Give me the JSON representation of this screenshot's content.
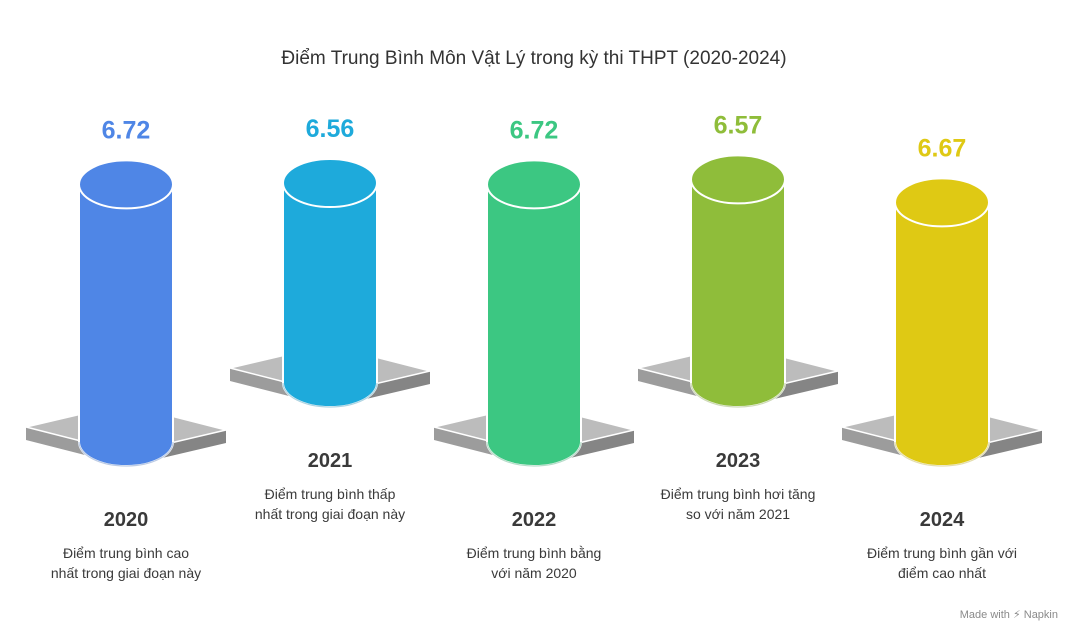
{
  "chart_data": {
    "type": "bar",
    "title": "Điểm Trung Bình Môn Vật Lý trong kỳ thi THPT (2020-2024)",
    "categories": [
      "2020",
      "2021",
      "2022",
      "2023",
      "2024"
    ],
    "values": [
      6.72,
      6.56,
      6.72,
      6.57,
      6.67
    ],
    "value_labels": [
      "6.72",
      "6.56",
      "6.72",
      "6.57",
      "6.67"
    ],
    "descriptions": [
      [
        "Điểm trung bình cao",
        "nhất trong giai đoạn này"
      ],
      [
        "Điểm trung bình thấp",
        "nhất trong giai đoạn này"
      ],
      [
        "Điểm trung bình bằng",
        "với năm 2020"
      ],
      [
        "Điểm trung bình hơi tăng",
        "so với năm 2021"
      ],
      [
        "Điểm trung bình gần với",
        "điểm cao nhất"
      ]
    ],
    "colors": [
      "#4f86e6",
      "#1eaadb",
      "#3cc782",
      "#8fbd3a",
      "#dfc914"
    ],
    "xlabel": "",
    "ylabel": "",
    "grid": false,
    "legend": "none"
  },
  "footer": {
    "made_with": "Made with",
    "brand": "Napkin"
  }
}
